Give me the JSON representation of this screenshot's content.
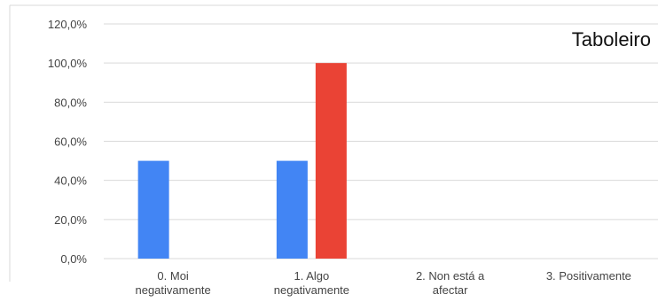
{
  "chart_data": {
    "type": "bar",
    "title": "Taboleiro",
    "categories": [
      [
        "0. Moi",
        "negativamente"
      ],
      [
        "1. Algo",
        "negativamente"
      ],
      [
        "2. Non está a",
        "afectar"
      ],
      [
        "3. Positivamente"
      ]
    ],
    "series": [
      {
        "values": [
          50,
          50,
          0,
          0
        ],
        "color": "#4285f4"
      },
      {
        "values": [
          0,
          100,
          0,
          0
        ],
        "color": "#ea4335"
      }
    ],
    "y_ticks": [
      "0,0%",
      "20,0%",
      "40,0%",
      "60,0%",
      "80,0%",
      "100,0%",
      "120,0%"
    ],
    "ylim": [
      0,
      120
    ],
    "grid": true,
    "xlabel": "",
    "ylabel": ""
  }
}
